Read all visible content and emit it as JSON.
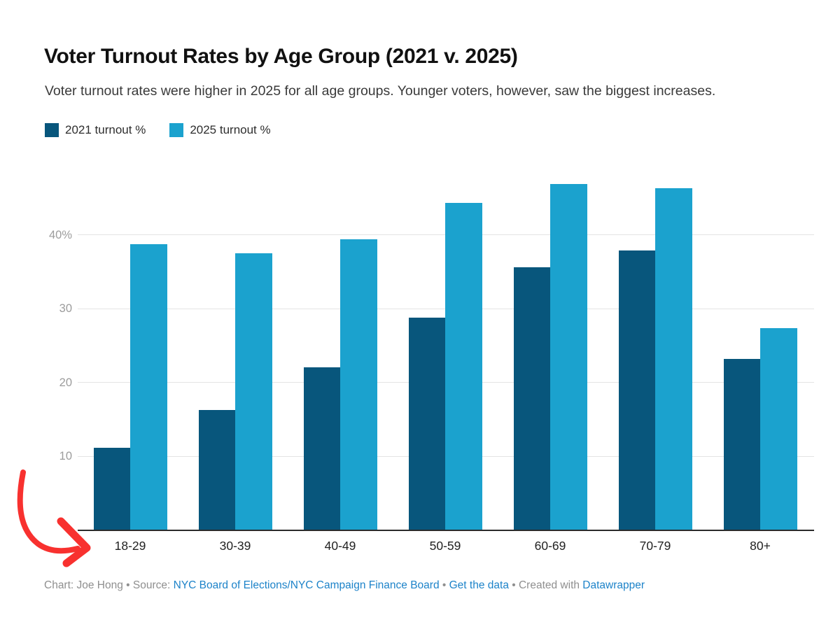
{
  "title": "Voter Turnout Rates by Age Group (2021 v. 2025)",
  "subtitle": "Voter turnout rates were higher in 2025 for all age groups. Younger voters, however, saw the biggest increases.",
  "legend": {
    "items": [
      {
        "label": "2021 turnout %",
        "color": "#08567c"
      },
      {
        "label": "2025 turnout %",
        "color": "#1ba2ce"
      }
    ]
  },
  "chart_data": {
    "type": "bar",
    "categories": [
      "18-29",
      "30-39",
      "40-49",
      "50-59",
      "60-69",
      "70-79",
      "80+"
    ],
    "series": [
      {
        "name": "2021 turnout %",
        "color": "#08567c",
        "values": [
          11.2,
          16.3,
          22.1,
          28.8,
          35.6,
          37.9,
          23.2
        ]
      },
      {
        "name": "2025 turnout %",
        "color": "#1ba2ce",
        "values": [
          38.7,
          37.5,
          39.4,
          44.3,
          46.9,
          46.3,
          27.4
        ]
      }
    ],
    "title": "Voter Turnout Rates by Age Group (2021 v. 2025)",
    "xlabel": "",
    "ylabel": "",
    "ylim": [
      0,
      50
    ],
    "y_ticks": [
      {
        "value": 10,
        "label": "10"
      },
      {
        "value": 20,
        "label": "20"
      },
      {
        "value": 30,
        "label": "30"
      },
      {
        "value": 40,
        "label": "40%"
      }
    ],
    "grid": true,
    "legend_position": "top-left"
  },
  "annotation": {
    "description": "hand-drawn red arrow pointing at 18-29 axis label",
    "color": "#f8312f"
  },
  "footer": {
    "parts": [
      {
        "text": "Chart: Joe Hong • Source: ",
        "link": false
      },
      {
        "text": "NYC Board of Elections/NYC Campaign Finance Board",
        "link": true
      },
      {
        "text": " • ",
        "link": false
      },
      {
        "text": "Get the data",
        "link": true
      },
      {
        "text": " • Created with ",
        "link": false
      },
      {
        "text": "Datawrapper",
        "link": true
      }
    ]
  }
}
